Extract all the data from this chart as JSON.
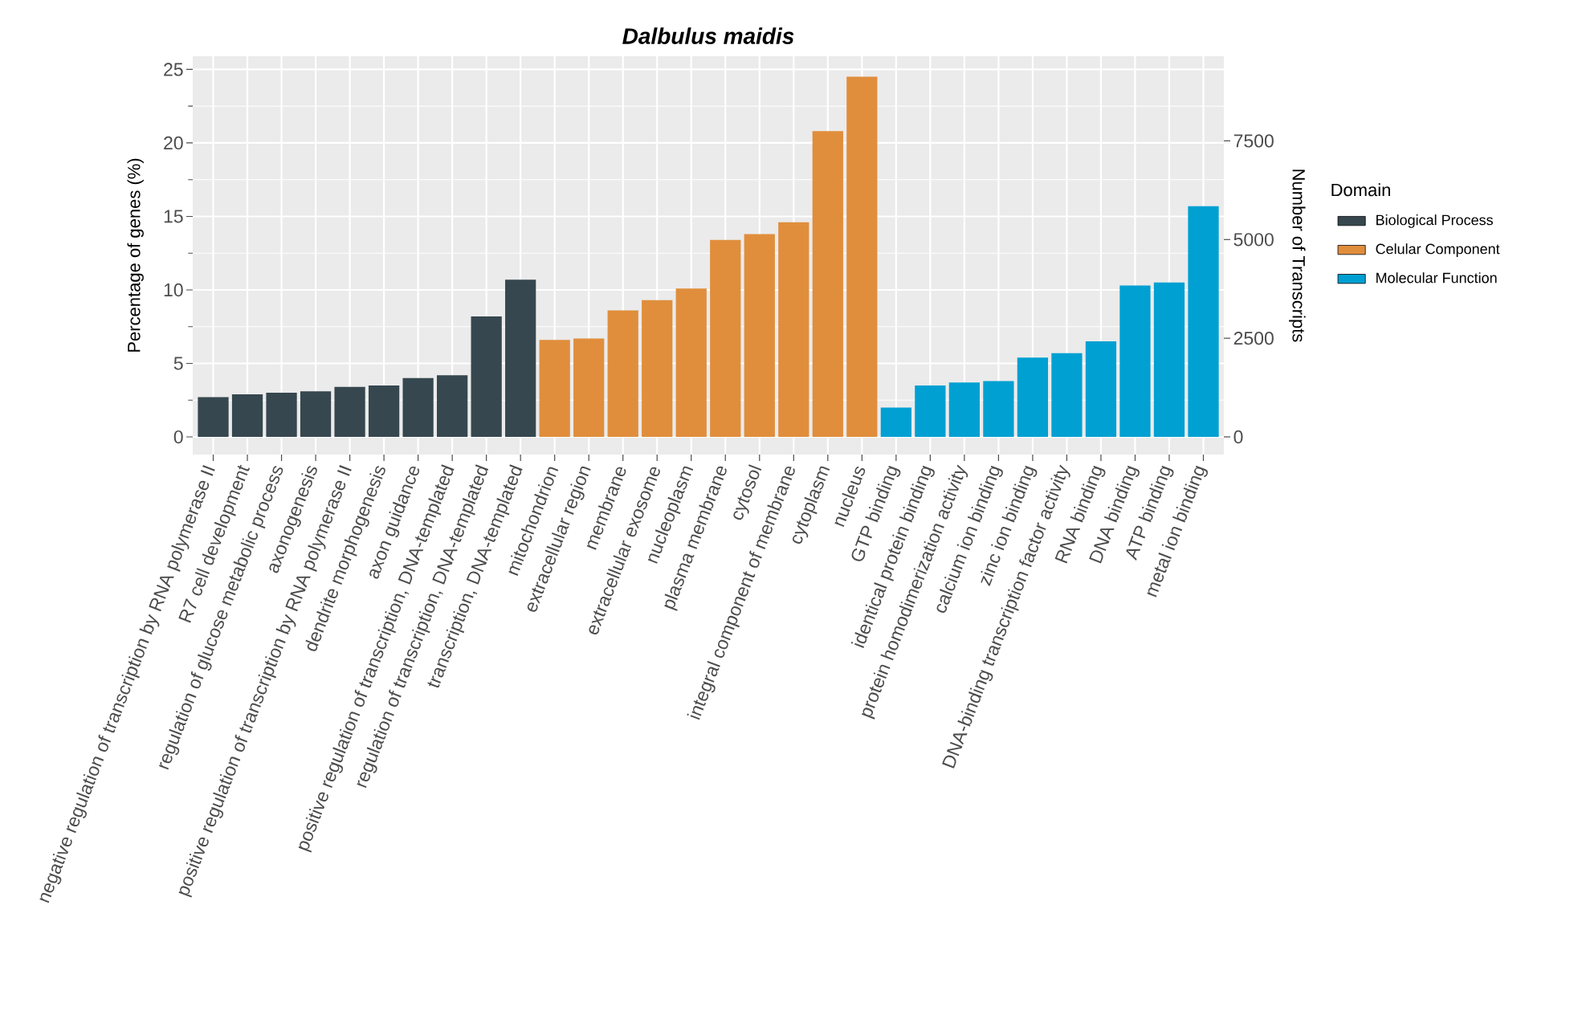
{
  "chart_data": {
    "type": "bar",
    "title": "Dalbulus maidis",
    "ylabel": "Percentage of genes (%)",
    "y2label": "Number of Transcripts",
    "legend_title": "Domain",
    "categories": [
      "negative regulation of transcription by RNA polymerase II",
      "R7 cell development",
      "regulation of glucose metabolic process",
      "axonogenesis",
      "positive regulation of transcription by RNA polymerase II",
      "dendrite morphogenesis",
      "axon guidance",
      "positive regulation of transcription, DNA-templated",
      "regulation of transcription, DNA-templated",
      "transcription, DNA-templated",
      "mitochondrion",
      "extracellular region",
      "membrane",
      "extracellular exosome",
      "nucleoplasm",
      "plasma membrane",
      "cytosol",
      "integral component of membrane",
      "cytoplasm",
      "nucleus",
      "GTP binding",
      "identical protein binding",
      "protein homodimerization activity",
      "calcium ion binding",
      "zinc ion binding",
      "DNA-binding transcription factor activity",
      "RNA binding",
      "DNA binding",
      "ATP binding",
      "metal ion binding"
    ],
    "series": [
      {
        "name": "Biological Process",
        "color": "#36474f",
        "values": [
          2.7,
          2.9,
          3.0,
          3.1,
          3.4,
          3.5,
          4.0,
          4.2,
          8.2,
          10.7,
          null,
          null,
          null,
          null,
          null,
          null,
          null,
          null,
          null,
          null,
          null,
          null,
          null,
          null,
          null,
          null,
          null,
          null,
          null,
          null
        ]
      },
      {
        "name": "Celular Component",
        "color": "#e08e3c",
        "values": [
          null,
          null,
          null,
          null,
          null,
          null,
          null,
          null,
          null,
          null,
          6.6,
          6.7,
          8.6,
          9.3,
          10.1,
          13.4,
          13.8,
          14.6,
          20.8,
          24.5,
          null,
          null,
          null,
          null,
          null,
          null,
          null,
          null,
          null,
          null
        ]
      },
      {
        "name": "Molecular Function",
        "color": "#00a0d2",
        "values": [
          null,
          null,
          null,
          null,
          null,
          null,
          null,
          null,
          null,
          null,
          null,
          null,
          null,
          null,
          null,
          null,
          null,
          null,
          null,
          null,
          2.0,
          3.5,
          3.7,
          3.8,
          5.4,
          5.7,
          6.5,
          10.3,
          10.5,
          15.7
        ]
      }
    ],
    "ylim": [
      -1.2,
      25.9
    ],
    "yticks": [
      0,
      5,
      10,
      15,
      20,
      25
    ],
    "y2lim": [
      -447,
      9645
    ],
    "y2ticks": [
      0,
      2500,
      5000,
      7500
    ],
    "grid": true,
    "legend": "right"
  }
}
